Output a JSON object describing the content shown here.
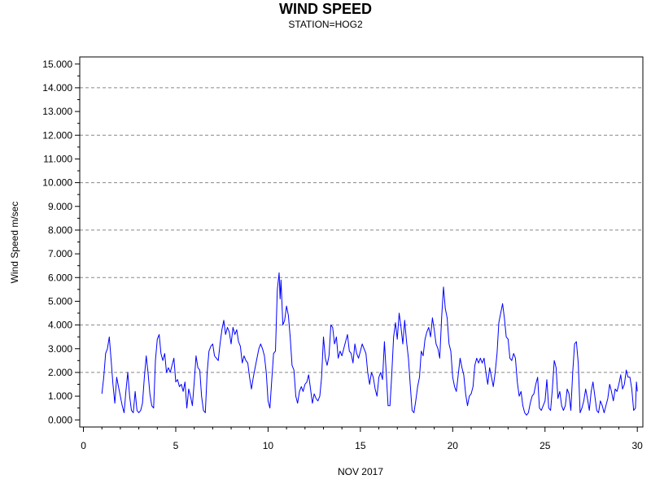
{
  "chart_data": {
    "type": "line",
    "title": "WIND SPEED",
    "subtitle": "STATION=HOG2",
    "xlabel": "NOV 2017",
    "ylabel": "Wind Speed m/sec",
    "xlim": [
      -0.2,
      30.3
    ],
    "ylim": [
      -0.3,
      15.3
    ],
    "x_ticks": [
      0,
      5,
      10,
      15,
      20,
      25,
      30
    ],
    "x_tick_labels": [
      "0",
      "5",
      "10",
      "15",
      "20",
      "25",
      "30"
    ],
    "y_ticks": [
      0,
      1,
      2,
      3,
      4,
      5,
      6,
      7,
      8,
      9,
      10,
      11,
      12,
      13,
      14,
      15
    ],
    "y_tick_labels": [
      "0.000",
      "1.000",
      "2.000",
      "3.000",
      "4.000",
      "5.000",
      "6.000",
      "7.000",
      "8.000",
      "9.000",
      "10.000",
      "11.000",
      "12.000",
      "13.000",
      "14.000",
      "15.000"
    ],
    "gridlines": [
      2,
      4,
      6,
      8,
      10,
      12,
      14
    ],
    "grid": "horizontal-dashed",
    "series": [
      {
        "color": "#0000ff",
        "points": [
          [
            1.0,
            1.1
          ],
          [
            1.1,
            1.8
          ],
          [
            1.2,
            2.8
          ],
          [
            1.3,
            3.0
          ],
          [
            1.4,
            3.5
          ],
          [
            1.5,
            2.5
          ],
          [
            1.6,
            1.5
          ],
          [
            1.7,
            0.7
          ],
          [
            1.8,
            1.8
          ],
          [
            1.9,
            1.4
          ],
          [
            2.0,
            1.0
          ],
          [
            2.1,
            0.6
          ],
          [
            2.2,
            0.3
          ],
          [
            2.3,
            1.2
          ],
          [
            2.4,
            2.0
          ],
          [
            2.5,
            1.0
          ],
          [
            2.6,
            0.4
          ],
          [
            2.7,
            0.3
          ],
          [
            2.8,
            1.2
          ],
          [
            2.9,
            0.4
          ],
          [
            3.0,
            0.3
          ],
          [
            3.1,
            0.4
          ],
          [
            3.2,
            0.7
          ],
          [
            3.3,
            1.8
          ],
          [
            3.4,
            2.7
          ],
          [
            3.5,
            2.0
          ],
          [
            3.6,
            1.1
          ],
          [
            3.7,
            0.6
          ],
          [
            3.8,
            0.5
          ],
          [
            3.9,
            2.5
          ],
          [
            4.0,
            3.4
          ],
          [
            4.1,
            3.6
          ],
          [
            4.2,
            2.8
          ],
          [
            4.3,
            2.5
          ],
          [
            4.4,
            2.8
          ],
          [
            4.5,
            2.0
          ],
          [
            4.6,
            2.2
          ],
          [
            4.7,
            2.0
          ],
          [
            4.8,
            2.3
          ],
          [
            4.9,
            2.6
          ],
          [
            5.0,
            1.6
          ],
          [
            5.1,
            1.7
          ],
          [
            5.2,
            1.4
          ],
          [
            5.3,
            1.5
          ],
          [
            5.4,
            1.2
          ],
          [
            5.5,
            1.6
          ],
          [
            5.6,
            0.5
          ],
          [
            5.7,
            1.3
          ],
          [
            5.8,
            1.0
          ],
          [
            5.9,
            0.6
          ],
          [
            6.0,
            1.6
          ],
          [
            6.1,
            2.7
          ],
          [
            6.2,
            2.2
          ],
          [
            6.3,
            2.1
          ],
          [
            6.4,
            1.0
          ],
          [
            6.5,
            0.4
          ],
          [
            6.6,
            0.3
          ],
          [
            6.7,
            2.0
          ],
          [
            6.8,
            2.9
          ],
          [
            6.9,
            3.1
          ],
          [
            7.0,
            3.2
          ],
          [
            7.1,
            2.7
          ],
          [
            7.2,
            2.6
          ],
          [
            7.3,
            2.5
          ],
          [
            7.4,
            3.2
          ],
          [
            7.5,
            3.8
          ],
          [
            7.6,
            4.2
          ],
          [
            7.7,
            3.6
          ],
          [
            7.8,
            3.9
          ],
          [
            7.9,
            3.7
          ],
          [
            8.0,
            3.2
          ],
          [
            8.1,
            3.9
          ],
          [
            8.2,
            3.6
          ],
          [
            8.3,
            3.8
          ],
          [
            8.4,
            3.3
          ],
          [
            8.5,
            3.1
          ],
          [
            8.6,
            2.4
          ],
          [
            8.7,
            2.7
          ],
          [
            8.8,
            2.5
          ],
          [
            8.9,
            2.4
          ],
          [
            9.0,
            1.8
          ],
          [
            9.1,
            1.3
          ],
          [
            9.2,
            1.8
          ],
          [
            9.3,
            2.2
          ],
          [
            9.4,
            2.6
          ],
          [
            9.5,
            3.0
          ],
          [
            9.6,
            3.2
          ],
          [
            9.7,
            3.0
          ],
          [
            9.8,
            2.7
          ],
          [
            9.9,
            2.0
          ],
          [
            10.0,
            0.8
          ],
          [
            10.1,
            0.5
          ],
          [
            10.2,
            1.7
          ],
          [
            10.3,
            2.8
          ],
          [
            10.4,
            2.9
          ],
          [
            10.5,
            5.5
          ],
          [
            10.6,
            6.2
          ],
          [
            10.65,
            5.1
          ],
          [
            10.7,
            5.9
          ],
          [
            10.8,
            4.0
          ],
          [
            10.9,
            4.2
          ],
          [
            11.0,
            4.8
          ],
          [
            11.1,
            4.4
          ],
          [
            11.2,
            3.5
          ],
          [
            11.3,
            2.3
          ],
          [
            11.4,
            2.1
          ],
          [
            11.5,
            1.0
          ],
          [
            11.6,
            0.7
          ],
          [
            11.7,
            1.2
          ],
          [
            11.8,
            1.4
          ],
          [
            11.9,
            1.2
          ],
          [
            12.0,
            1.5
          ],
          [
            12.1,
            1.6
          ],
          [
            12.2,
            1.9
          ],
          [
            12.3,
            1.3
          ],
          [
            12.4,
            0.7
          ],
          [
            12.5,
            1.1
          ],
          [
            12.6,
            0.9
          ],
          [
            12.7,
            0.8
          ],
          [
            12.8,
            1.0
          ],
          [
            12.9,
            1.8
          ],
          [
            13.0,
            3.5
          ],
          [
            13.1,
            2.6
          ],
          [
            13.2,
            2.3
          ],
          [
            13.3,
            2.7
          ],
          [
            13.4,
            4.0
          ],
          [
            13.5,
            3.9
          ],
          [
            13.6,
            3.2
          ],
          [
            13.7,
            3.5
          ],
          [
            13.8,
            2.6
          ],
          [
            13.9,
            2.9
          ],
          [
            14.0,
            2.7
          ],
          [
            14.1,
            3.0
          ],
          [
            14.2,
            3.3
          ],
          [
            14.3,
            3.6
          ],
          [
            14.4,
            2.9
          ],
          [
            14.5,
            2.8
          ],
          [
            14.6,
            2.4
          ],
          [
            14.7,
            3.2
          ],
          [
            14.8,
            2.8
          ],
          [
            14.9,
            2.6
          ],
          [
            15.0,
            2.9
          ],
          [
            15.1,
            3.2
          ],
          [
            15.2,
            3.0
          ],
          [
            15.3,
            2.8
          ],
          [
            15.4,
            2.0
          ],
          [
            15.5,
            1.5
          ],
          [
            15.6,
            2.0
          ],
          [
            15.7,
            1.8
          ],
          [
            15.8,
            1.3
          ],
          [
            15.9,
            1.0
          ],
          [
            16.0,
            1.8
          ],
          [
            16.1,
            2.0
          ],
          [
            16.2,
            1.7
          ],
          [
            16.3,
            3.3
          ],
          [
            16.4,
            2.0
          ],
          [
            16.5,
            0.6
          ],
          [
            16.6,
            0.6
          ],
          [
            16.7,
            1.9
          ],
          [
            16.8,
            3.5
          ],
          [
            16.9,
            4.1
          ],
          [
            17.0,
            3.4
          ],
          [
            17.1,
            4.5
          ],
          [
            17.2,
            3.9
          ],
          [
            17.3,
            3.2
          ],
          [
            17.4,
            4.2
          ],
          [
            17.5,
            3.3
          ],
          [
            17.6,
            2.6
          ],
          [
            17.7,
            1.5
          ],
          [
            17.8,
            0.4
          ],
          [
            17.9,
            0.3
          ],
          [
            18.0,
            0.8
          ],
          [
            18.1,
            1.4
          ],
          [
            18.2,
            1.8
          ],
          [
            18.3,
            2.9
          ],
          [
            18.4,
            2.7
          ],
          [
            18.5,
            3.4
          ],
          [
            18.6,
            3.7
          ],
          [
            18.7,
            3.9
          ],
          [
            18.8,
            3.5
          ],
          [
            18.9,
            4.3
          ],
          [
            19.0,
            3.8
          ],
          [
            19.1,
            3.2
          ],
          [
            19.2,
            3.0
          ],
          [
            19.3,
            2.6
          ],
          [
            19.4,
            4.3
          ],
          [
            19.5,
            5.6
          ],
          [
            19.6,
            4.7
          ],
          [
            19.7,
            4.3
          ],
          [
            19.8,
            3.2
          ],
          [
            19.9,
            2.9
          ],
          [
            20.0,
            1.8
          ],
          [
            20.1,
            1.4
          ],
          [
            20.2,
            1.2
          ],
          [
            20.3,
            1.9
          ],
          [
            20.4,
            2.6
          ],
          [
            20.5,
            2.2
          ],
          [
            20.6,
            1.9
          ],
          [
            20.7,
            1.1
          ],
          [
            20.8,
            0.6
          ],
          [
            20.9,
            1.0
          ],
          [
            21.0,
            1.1
          ],
          [
            21.1,
            1.4
          ],
          [
            21.2,
            2.3
          ],
          [
            21.3,
            2.6
          ],
          [
            21.4,
            2.4
          ],
          [
            21.5,
            2.6
          ],
          [
            21.6,
            2.4
          ],
          [
            21.7,
            2.6
          ],
          [
            21.8,
            2.0
          ],
          [
            21.9,
            1.5
          ],
          [
            22.0,
            2.2
          ],
          [
            22.1,
            1.8
          ],
          [
            22.2,
            1.4
          ],
          [
            22.3,
            2.0
          ],
          [
            22.4,
            2.8
          ],
          [
            22.5,
            4.1
          ],
          [
            22.6,
            4.5
          ],
          [
            22.7,
            4.9
          ],
          [
            22.8,
            4.3
          ],
          [
            22.9,
            3.5
          ],
          [
            23.0,
            3.4
          ],
          [
            23.1,
            2.6
          ],
          [
            23.2,
            2.5
          ],
          [
            23.3,
            2.8
          ],
          [
            23.4,
            2.6
          ],
          [
            23.5,
            1.6
          ],
          [
            23.6,
            1.0
          ],
          [
            23.7,
            1.2
          ],
          [
            23.8,
            0.6
          ],
          [
            23.9,
            0.3
          ],
          [
            24.0,
            0.2
          ],
          [
            24.1,
            0.3
          ],
          [
            24.2,
            0.7
          ],
          [
            24.3,
            1.0
          ],
          [
            24.4,
            1.1
          ],
          [
            24.5,
            1.5
          ],
          [
            24.6,
            1.8
          ],
          [
            24.7,
            0.5
          ],
          [
            24.8,
            0.4
          ],
          [
            24.9,
            0.6
          ],
          [
            25.0,
            0.8
          ],
          [
            25.1,
            1.7
          ],
          [
            25.2,
            0.5
          ],
          [
            25.3,
            0.4
          ],
          [
            25.4,
            1.3
          ],
          [
            25.5,
            2.5
          ],
          [
            25.6,
            2.2
          ],
          [
            25.7,
            0.9
          ],
          [
            25.8,
            1.2
          ],
          [
            25.9,
            0.6
          ],
          [
            26.0,
            0.4
          ],
          [
            26.1,
            0.6
          ],
          [
            26.2,
            1.3
          ],
          [
            26.3,
            1.1
          ],
          [
            26.4,
            0.4
          ],
          [
            26.5,
            2.0
          ],
          [
            26.6,
            3.2
          ],
          [
            26.7,
            3.3
          ],
          [
            26.8,
            2.4
          ],
          [
            26.9,
            0.3
          ],
          [
            27.0,
            0.5
          ],
          [
            27.1,
            0.8
          ],
          [
            27.2,
            1.3
          ],
          [
            27.3,
            0.9
          ],
          [
            27.4,
            0.4
          ],
          [
            27.5,
            1.2
          ],
          [
            27.6,
            1.6
          ],
          [
            27.7,
            1.0
          ],
          [
            27.8,
            0.4
          ],
          [
            27.9,
            0.3
          ],
          [
            28.0,
            0.8
          ],
          [
            28.1,
            0.6
          ],
          [
            28.2,
            0.3
          ],
          [
            28.3,
            0.6
          ],
          [
            28.4,
            0.9
          ],
          [
            28.5,
            1.5
          ],
          [
            28.6,
            1.2
          ],
          [
            28.7,
            0.8
          ],
          [
            28.8,
            1.3
          ],
          [
            28.9,
            1.2
          ],
          [
            29.0,
            1.5
          ],
          [
            29.1,
            1.9
          ],
          [
            29.2,
            1.3
          ],
          [
            29.3,
            1.5
          ],
          [
            29.4,
            2.1
          ],
          [
            29.5,
            1.8
          ],
          [
            29.6,
            1.8
          ],
          [
            29.7,
            1.3
          ],
          [
            29.8,
            0.4
          ],
          [
            29.9,
            0.5
          ],
          [
            29.95,
            1.6
          ],
          [
            30.0,
            1.2
          ]
        ]
      }
    ]
  }
}
